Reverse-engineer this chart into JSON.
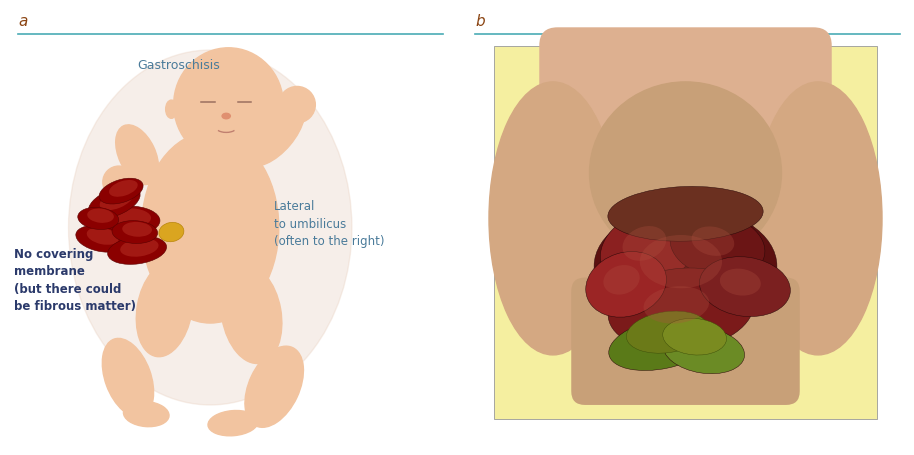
{
  "panel_a_label": "a",
  "panel_b_label": "b",
  "label_color": "#8B4513",
  "line_color": "#4AABB5",
  "title_text": "Gastroschisis",
  "title_color": "#4A7B9A",
  "title_fontsize": 9,
  "label_fontsize": 11,
  "annotation_lateral_text": "Lateral\nto umbilicus\n(often to the right)",
  "annotation_lateral_color": "#4A7B9A",
  "annotation_lateral_fontsize": 8.5,
  "annotation_nocovering_text": "No covering\nmembrane\n(but there could\nbe fibrous matter)",
  "annotation_nocovering_color": "#2B3A6B",
  "annotation_nocovering_fontsize": 8.5,
  "bg_color": "#ffffff",
  "fig_width": 9.14,
  "fig_height": 4.55,
  "dpi": 100,
  "skin_color": "#F2C4A0",
  "dark_red": "#8B0000",
  "red_mid": "#C0392B",
  "gold_color": "#DAA520",
  "photo_bg": "#F5EFA0",
  "intestine_colors_b": [
    "#5C1010",
    "#8B2020",
    "#6B1515",
    "#7B1A1A",
    "#9B2525",
    "#7B2020",
    "#6B3020",
    "#5A7A18",
    "#6B8B25"
  ]
}
